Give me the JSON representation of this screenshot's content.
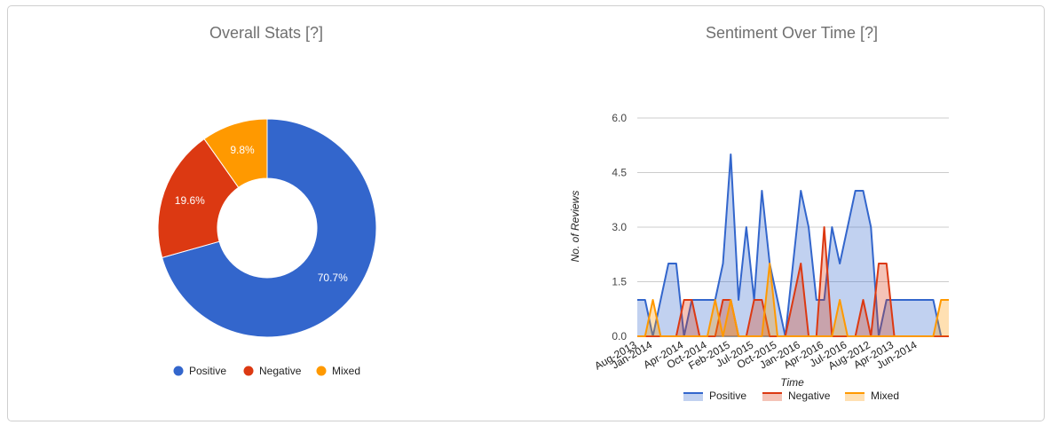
{
  "panels": {
    "left_title": "Overall Stats [?]",
    "right_title": "Sentiment Over Time [?]"
  },
  "colors": {
    "positive": "#3366cc",
    "negative": "#dc3912",
    "mixed": "#ff9900"
  },
  "chart_data": [
    {
      "type": "pie",
      "title": "Overall Stats [?]",
      "donut": true,
      "slices": [
        {
          "label": "Positive",
          "value": 70.7,
          "display": "70.7%"
        },
        {
          "label": "Negative",
          "value": 19.6,
          "display": "19.6%"
        },
        {
          "label": "Mixed",
          "value": 9.8,
          "display": "9.8%"
        }
      ],
      "legend": [
        "Positive",
        "Negative",
        "Mixed"
      ],
      "legend_position": "bottom"
    },
    {
      "type": "area",
      "title": "Sentiment Over Time [?]",
      "xlabel": "Time",
      "ylabel": "No. of Reviews",
      "ylim": [
        0,
        6
      ],
      "yticks": [
        "0.0",
        "1.5",
        "3.0",
        "4.5",
        "6.0"
      ],
      "ytick_values": [
        0,
        1.5,
        3,
        4.5,
        6
      ],
      "x_tick_labels": [
        "Aug-2013",
        "Jan-2014",
        "Apr-2014",
        "Oct-2014",
        "Feb-2015",
        "Jul-2015",
        "Oct-2015",
        "Jan-2016",
        "Apr-2016",
        "Jul-2016",
        "Aug-2012",
        "Apr-2013",
        "Jun-2014"
      ],
      "x_tick_index": [
        0,
        2,
        6,
        9,
        12,
        15,
        18,
        21,
        24,
        27,
        30,
        33,
        36
      ],
      "grid": true,
      "legend_position": "bottom",
      "series": [
        {
          "name": "Positive",
          "values": [
            1,
            1,
            0,
            1,
            2,
            2,
            0,
            1,
            1,
            1,
            1,
            2,
            5,
            1,
            3,
            1,
            4,
            2,
            1,
            0,
            2,
            4,
            3,
            1,
            1,
            3,
            2,
            3,
            4,
            4,
            3,
            0,
            1,
            1,
            1,
            1,
            1,
            1,
            1,
            0,
            0
          ]
        },
        {
          "name": "Negative",
          "values": [
            0,
            0,
            0,
            0,
            0,
            0,
            1,
            1,
            0,
            0,
            0,
            1,
            1,
            0,
            0,
            1,
            1,
            0,
            0,
            0,
            1,
            2,
            0,
            0,
            3,
            0,
            0,
            0,
            0,
            1,
            0,
            2,
            2,
            0,
            0,
            0,
            0,
            0,
            0,
            0,
            0
          ]
        },
        {
          "name": "Mixed",
          "values": [
            0,
            0,
            1,
            0,
            0,
            0,
            0,
            0,
            0,
            0,
            1,
            0,
            1,
            0,
            0,
            0,
            0,
            2,
            0,
            0,
            0,
            0,
            0,
            0,
            0,
            0,
            1,
            0,
            0,
            0,
            0,
            0,
            0,
            0,
            0,
            0,
            0,
            0,
            0,
            1,
            1
          ]
        }
      ]
    }
  ]
}
